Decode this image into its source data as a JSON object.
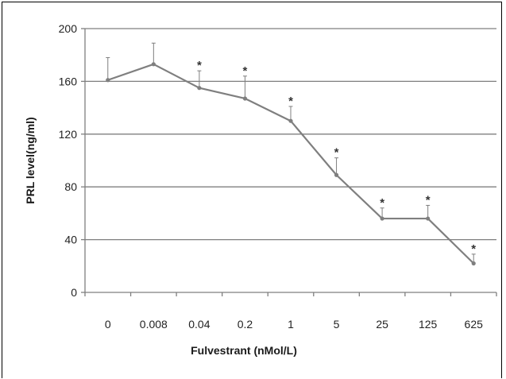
{
  "chart_data": {
    "type": "line",
    "title": "",
    "xlabel": "Fulvestrant (nMol/L)",
    "ylabel": "PRL level(ng/ml)",
    "categories": [
      "0",
      "0.008",
      "0.04",
      "0.2",
      "1",
      "5",
      "25",
      "125",
      "625"
    ],
    "ylim": [
      0,
      200
    ],
    "yticks": [
      0,
      40,
      80,
      120,
      160,
      200
    ],
    "ytick_labels": [
      "0",
      "40",
      "80",
      "120",
      "160",
      "200"
    ],
    "grid": "horizontal",
    "legend": "none",
    "series": [
      {
        "values": [
          161,
          173,
          155,
          147,
          130,
          89,
          56,
          56,
          22
        ],
        "error_upper": [
          17,
          16,
          13,
          17,
          11,
          13,
          8,
          10,
          7
        ],
        "significance": [
          "",
          "",
          "*",
          "*",
          "*",
          "*",
          "*",
          "*",
          "*"
        ]
      }
    ],
    "colors": {
      "line": "#7f7f7f",
      "marker": "#7f7f7f",
      "error_bar": "#7f7f7f",
      "gridline": "#7f7f7f",
      "axis": "#7f7f7f",
      "text": "#222222"
    }
  }
}
